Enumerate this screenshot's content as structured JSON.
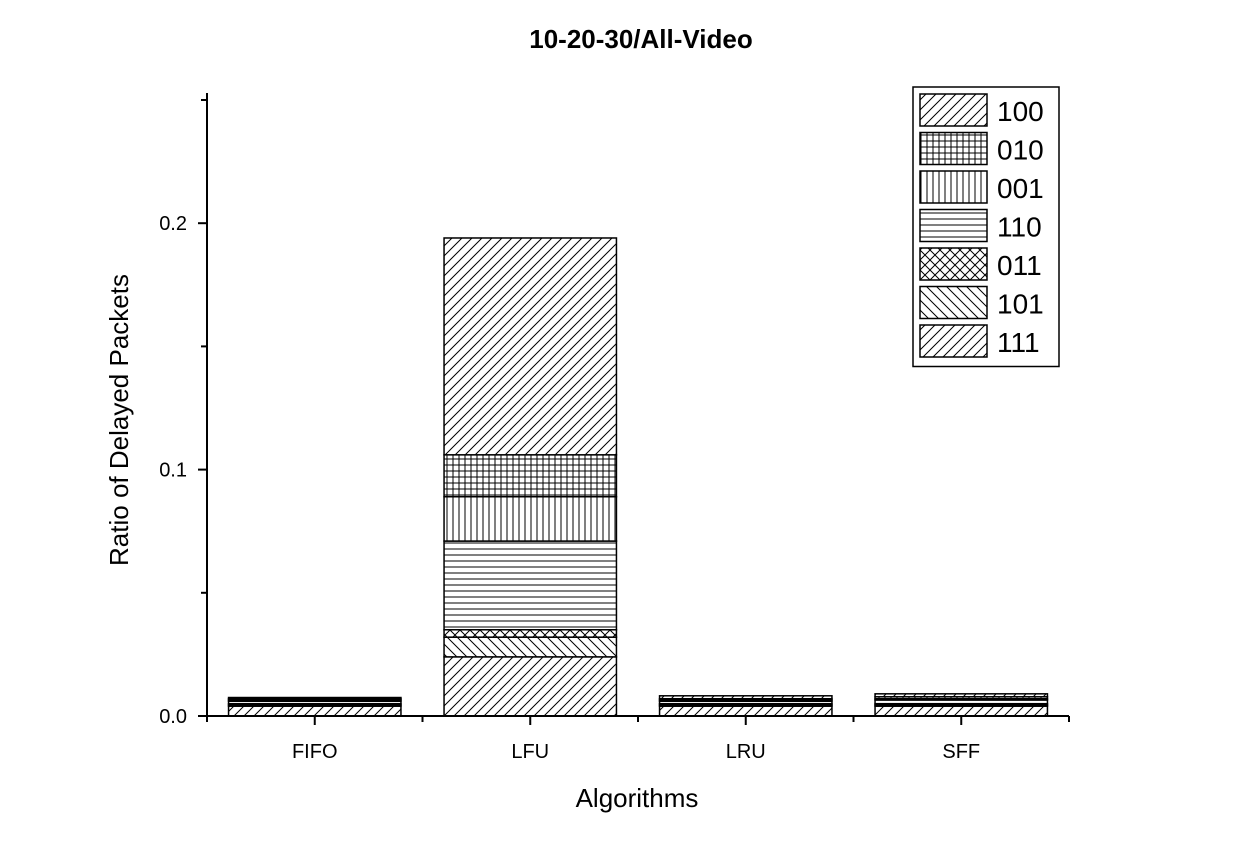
{
  "chart_data": {
    "type": "bar",
    "stacked": true,
    "title": "10-20-30/All-Video",
    "xlabel": "Algorithms",
    "ylabel": "Ratio of Delayed Packets",
    "categories": [
      "FIFO",
      "LFU",
      "LRU",
      "SFF"
    ],
    "ylim": [
      0,
      0.25
    ],
    "yticks": [
      0.0,
      0.1,
      0.2
    ],
    "ytick_labels": [
      "0.0",
      "0.1",
      "0.2"
    ],
    "series": [
      {
        "name": "111",
        "pattern": "diag-up",
        "values": [
          0.004,
          0.024,
          0.004,
          0.004
        ]
      },
      {
        "name": "101",
        "pattern": "diag-down",
        "values": [
          0.0005,
          0.008,
          0.0005,
          0.0005
        ]
      },
      {
        "name": "011",
        "pattern": "crosshatch",
        "values": [
          0.0005,
          0.003,
          0.0005,
          0.0005
        ]
      },
      {
        "name": "110",
        "pattern": "horizontal",
        "values": [
          0.001,
          0.036,
          0.001,
          0.0015
        ]
      },
      {
        "name": "001",
        "pattern": "vertical",
        "values": [
          0.0005,
          0.018,
          0.0005,
          0.0005
        ]
      },
      {
        "name": "010",
        "pattern": "grid",
        "values": [
          0.0005,
          0.017,
          0.0005,
          0.0008
        ]
      },
      {
        "name": "100",
        "pattern": "diag-up",
        "values": [
          0.0005,
          0.088,
          0.0012,
          0.0012
        ]
      }
    ],
    "legend": {
      "position": "top-right",
      "order": [
        "100",
        "010",
        "001",
        "110",
        "011",
        "101",
        "111"
      ]
    },
    "grid": false
  }
}
